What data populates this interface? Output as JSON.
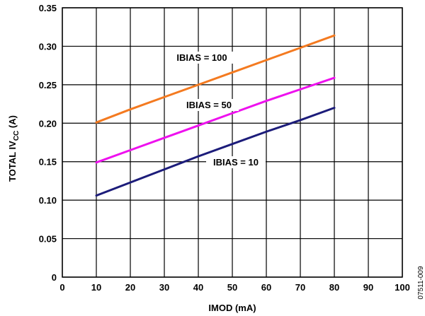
{
  "chart_data": {
    "type": "line",
    "xlabel": "IMOD (mA)",
    "ylabel_main": "TOTAL IV",
    "ylabel_sub": "CC",
    "ylabel_unit": " (A)",
    "xlim": [
      0,
      100
    ],
    "ylim": [
      0,
      0.35
    ],
    "x_ticks": [
      0,
      10,
      20,
      30,
      40,
      50,
      60,
      70,
      80,
      90,
      100
    ],
    "x_tick_labels": [
      "0",
      "10",
      "20",
      "30",
      "40",
      "50",
      "60",
      "70",
      "80",
      "90",
      "100"
    ],
    "y_ticks": [
      0,
      0.05,
      0.1,
      0.15,
      0.2,
      0.25,
      0.3,
      0.35
    ],
    "y_tick_labels": [
      "0",
      "0.05",
      "0.10",
      "0.15",
      "0.20",
      "0.25",
      "0.30",
      "0.35"
    ],
    "grid": true,
    "series": [
      {
        "name": "IBIAS = 100",
        "color": "#f47a20",
        "x": [
          10,
          20,
          30,
          40,
          50,
          60,
          70,
          80
        ],
        "y": [
          0.201,
          0.218,
          0.234,
          0.25,
          0.266,
          0.282,
          0.298,
          0.314
        ]
      },
      {
        "name": "IBIAS = 50",
        "color": "#ee11ee",
        "x": [
          10,
          20,
          30,
          40,
          50,
          60,
          70,
          80
        ],
        "y": [
          0.149,
          0.165,
          0.181,
          0.197,
          0.213,
          0.229,
          0.244,
          0.259
        ]
      },
      {
        "name": "IBIAS = 10",
        "color": "#1c1c7a",
        "x": [
          10,
          20,
          30,
          40,
          50,
          60,
          70,
          80
        ],
        "y": [
          0.106,
          0.123,
          0.14,
          0.157,
          0.173,
          0.189,
          0.204,
          0.22
        ]
      }
    ],
    "figure_id": "07511-009"
  }
}
